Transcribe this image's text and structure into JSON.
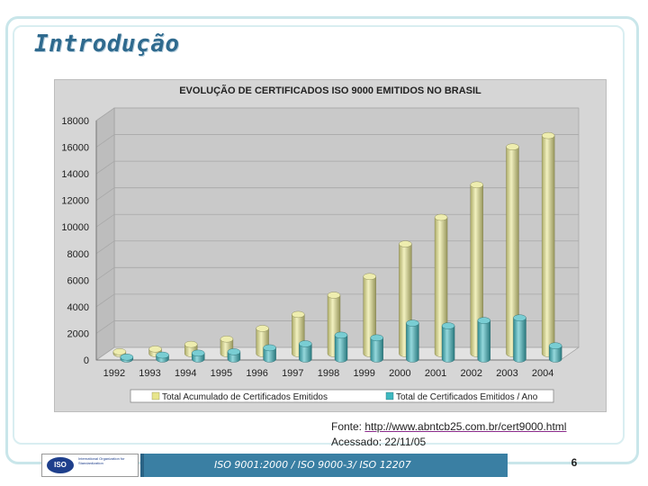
{
  "slide": {
    "title": "Introdução",
    "source_label": "Fonte: ",
    "source_url": "http://www.abntcb25.com.br/cert9000.html",
    "accessed": "Acessado: 22/11/05",
    "footer_text": "ISO 9001:2000 / ISO 9000-3/ ISO 12207",
    "page_number": "6",
    "iso_logo_text": "ISO",
    "iso_org_text": "International Organization for Standardization"
  },
  "colors": {
    "accent": "#2f6a8e",
    "footer_bar": "#3a7fa3",
    "series_total": "#e7e58c",
    "series_year": "#3fb8c0",
    "plot_bg": "#c9c9c9"
  },
  "chart_data": {
    "type": "bar",
    "title": "EVOLUÇÃO DE CERTIFICADOS ISO 9000 EMITIDOS NO BRASIL",
    "categories": [
      "1992",
      "1993",
      "1994",
      "1995",
      "1996",
      "1997",
      "1998",
      "1999",
      "2000",
      "2001",
      "2002",
      "2003",
      "2004"
    ],
    "ylim": [
      0,
      18000
    ],
    "yticks": [
      0,
      2000,
      4000,
      6000,
      8000,
      10000,
      12000,
      14000,
      16000,
      18000
    ],
    "grid": true,
    "legend_position": "bottom",
    "style": "3d-cylinders",
    "series": [
      {
        "name": "Total Acumulado de Certificados Emitidos",
        "values": [
          150,
          350,
          700,
          1100,
          1900,
          2950,
          4400,
          5800,
          8250,
          10250,
          12700,
          15550,
          16400
        ]
      },
      {
        "name": "Total de Certificados Emitidos / Ano",
        "values": [
          150,
          300,
          450,
          550,
          850,
          1150,
          1800,
          1600,
          2700,
          2500,
          2900,
          3100,
          1000
        ]
      }
    ]
  }
}
